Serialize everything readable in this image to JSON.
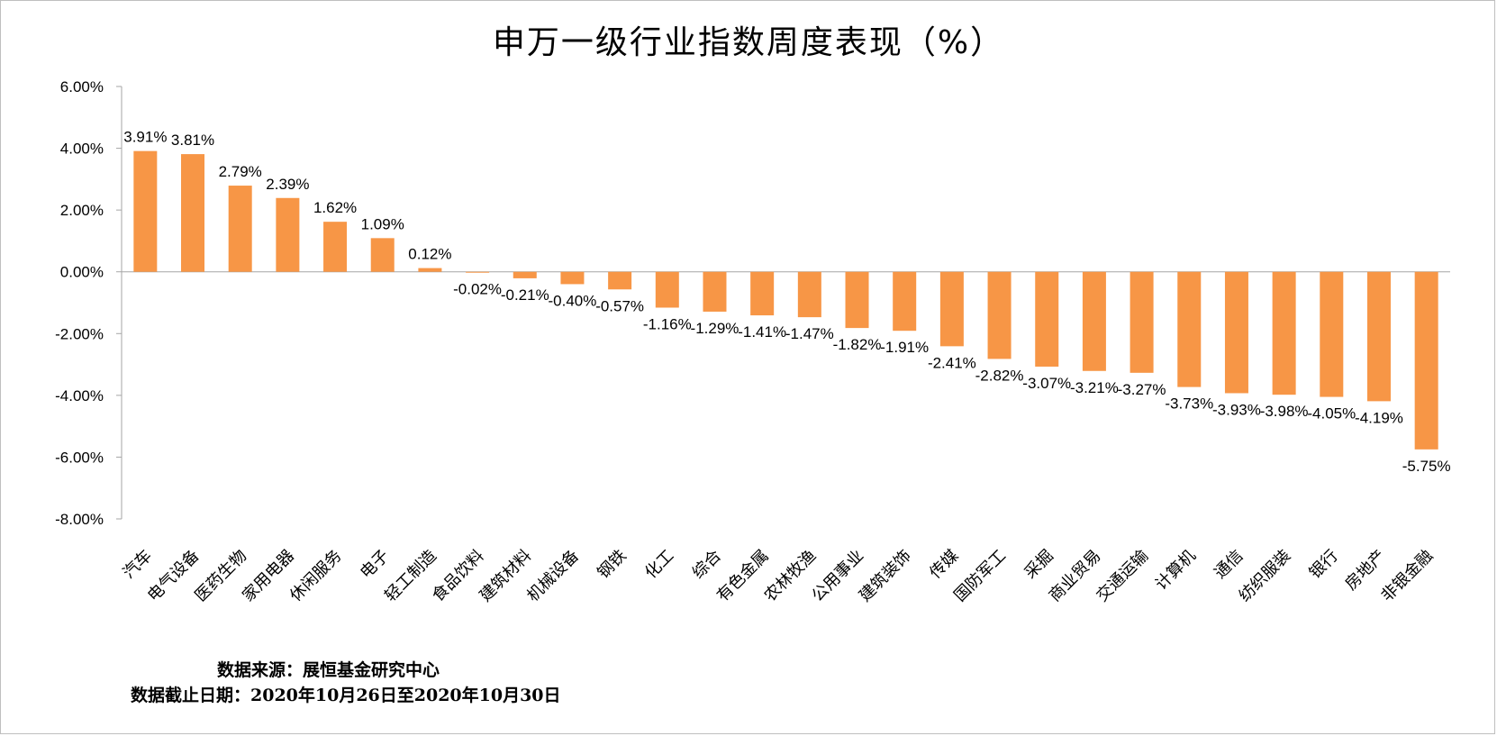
{
  "chart_data": {
    "type": "bar",
    "title": "申万一级行业指数周度表现（%）",
    "xlabel": "",
    "ylabel": "",
    "ylim": [
      -8,
      6
    ],
    "yticks": [
      6,
      4,
      2,
      0,
      -2,
      -4,
      -6,
      -8
    ],
    "ytick_labels": [
      "6.00%",
      "4.00%",
      "2.00%",
      "0.00%",
      "-2.00%",
      "-4.00%",
      "-6.00%",
      "-8.00%"
    ],
    "grid": false,
    "legend": "none",
    "bar_color": "#F79646",
    "categories": [
      "汽车",
      "电气设备",
      "医药生物",
      "家用电器",
      "休闲服务",
      "电子",
      "轻工制造",
      "食品饮料",
      "建筑材料",
      "机械设备",
      "钢铁",
      "化工",
      "综合",
      "有色金属",
      "农林牧渔",
      "公用事业",
      "建筑装饰",
      "传媒",
      "国防军工",
      "采掘",
      "商业贸易",
      "交通运输",
      "计算机",
      "通信",
      "纺织服装",
      "银行",
      "房地产",
      "非银金融"
    ],
    "values": [
      3.91,
      3.81,
      2.79,
      2.39,
      1.62,
      1.09,
      0.12,
      -0.02,
      -0.21,
      -0.4,
      -0.57,
      -1.16,
      -1.29,
      -1.41,
      -1.47,
      -1.82,
      -1.91,
      -2.41,
      -2.82,
      -3.07,
      -3.21,
      -3.27,
      -3.73,
      -3.93,
      -3.98,
      -4.05,
      -4.19,
      -5.75
    ],
    "data_labels": [
      "3.91%",
      "3.81%",
      "2.79%",
      "2.39%",
      "1.62%",
      "1.09%",
      "0.12%",
      "-0.02%",
      "-0.21%",
      "-0.40%",
      "-0.57%",
      "-1.16%",
      "-1.29%",
      "-1.41%",
      "-1.47%",
      "-1.82%",
      "-1.91%",
      "-2.41%",
      "-2.82%",
      "-3.07%",
      "-3.21%",
      "-3.27%",
      "-3.73%",
      "-3.93%",
      "-3.98%",
      "-4.05%",
      "-4.19%",
      "-5.75%"
    ]
  },
  "notes": {
    "source": "数据来源：展恒基金研究中心",
    "cutoff": "数据截止日期：2020年10月26日至2020年10月30日"
  }
}
